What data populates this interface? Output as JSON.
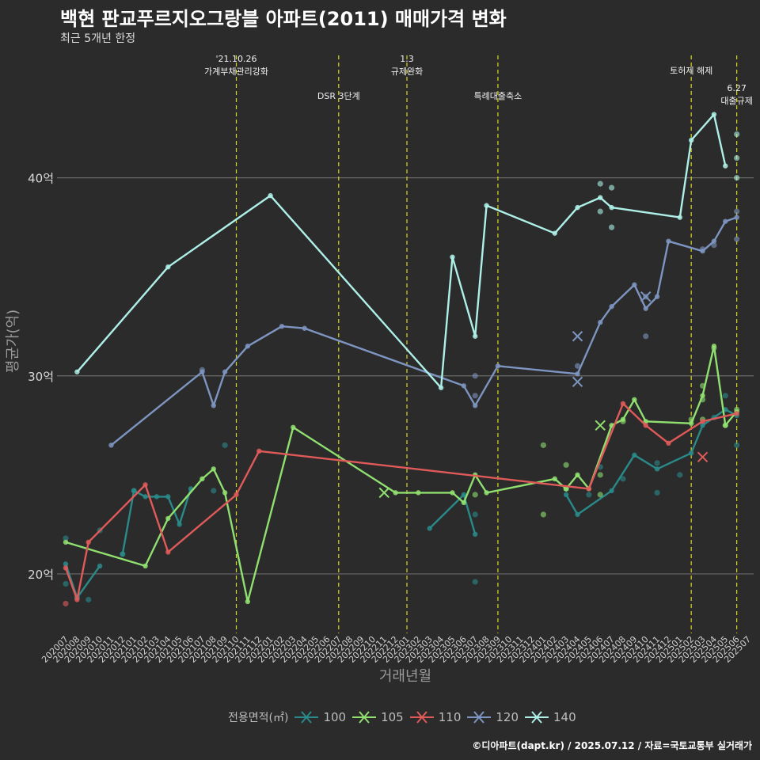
{
  "title": "백현 판교푸르지오그랑블 아파트(2011) 매매가격 변화",
  "subtitle": "최근 5개년 한정",
  "caption": "©디아파트(dapt.kr) / 2025.07.12 / 자료=국토교통부 실거래가",
  "legend": {
    "title": "전용면적(㎡)",
    "items": [
      {
        "label": "100",
        "color": "#2a8a8a"
      },
      {
        "label": "105",
        "color": "#90e070"
      },
      {
        "label": "110",
        "color": "#e05a5a"
      },
      {
        "label": "120",
        "color": "#7d95c0"
      },
      {
        "label": "140",
        "color": "#aef0e8"
      }
    ]
  },
  "chart_data": {
    "type": "line",
    "xlabel": "거래년월",
    "ylabel": "평균가(억)",
    "ylim": [
      17,
      46.5
    ],
    "yticks": [
      {
        "v": 20,
        "label": "20억"
      },
      {
        "v": 30,
        "label": "30억"
      },
      {
        "v": 40,
        "label": "40억"
      }
    ],
    "grid": true,
    "legend_position": "bottom",
    "x_ticks": [
      "202007",
      "202008",
      "202009",
      "202010",
      "202011",
      "202012",
      "202101",
      "202102",
      "202103",
      "202104",
      "202105",
      "202106",
      "202107",
      "202108",
      "202109",
      "202110",
      "202111",
      "202112",
      "202201",
      "202202",
      "202203",
      "202204",
      "202205",
      "202206",
      "202207",
      "202208",
      "202209",
      "202210",
      "202211",
      "202212",
      "202301",
      "202302",
      "202303",
      "202304",
      "202305",
      "202306",
      "202307",
      "202308",
      "202309",
      "202310",
      "202311",
      "202312",
      "202401",
      "202402",
      "202403",
      "202404",
      "202405",
      "202406",
      "202407",
      "202408",
      "202409",
      "202410",
      "202411",
      "202412",
      "202501",
      "202502",
      "202503",
      "202504",
      "202505",
      "202506",
      "202507"
    ],
    "events": [
      {
        "x": 15,
        "label": "'21.10.26\n가계부채관리강화",
        "row": 0
      },
      {
        "x": 24,
        "label": "DSR 3단계",
        "row": 1
      },
      {
        "x": 30,
        "label": "1.3\n규제완화",
        "row": 0
      },
      {
        "x": 38,
        "label": "특례대출축소",
        "row": 1
      },
      {
        "x": 55,
        "label": "토허제 해제",
        "row": 0
      },
      {
        "x": 59,
        "label": "6.27\n대출규제",
        "row": 2
      }
    ],
    "event_line_color": "#d8d820",
    "series": [
      {
        "name": "100",
        "color": "#2a8a8a",
        "line": [
          [
            0,
            20.5
          ],
          [
            1,
            18.8
          ],
          [
            3,
            20.4
          ]
        ],
        "line2": [
          [
            5,
            21.0
          ],
          [
            6,
            24.2
          ],
          [
            7,
            23.9
          ],
          [
            8,
            23.9
          ],
          [
            9,
            23.9
          ],
          [
            10,
            22.5
          ],
          [
            11,
            24.3
          ]
        ],
        "line3": [
          [
            32,
            22.3
          ],
          [
            35,
            24.0
          ],
          [
            36,
            22.0
          ]
        ],
        "line4": [
          [
            44,
            24.0
          ],
          [
            45,
            23.0
          ],
          [
            48,
            24.2
          ],
          [
            50,
            26.0
          ],
          [
            52,
            25.3
          ],
          [
            55,
            26.1
          ],
          [
            56,
            27.5
          ],
          [
            58,
            28.3
          ],
          [
            59,
            28.0
          ]
        ],
        "points": [
          [
            0,
            21.8
          ],
          [
            0,
            19.5
          ],
          [
            1,
            18.8
          ],
          [
            2,
            18.7
          ],
          [
            3,
            22.2
          ],
          [
            5,
            21.0
          ],
          [
            6,
            24.2
          ],
          [
            13,
            24.2
          ],
          [
            14,
            26.5
          ],
          [
            36,
            19.6
          ],
          [
            36,
            23.0
          ],
          [
            44,
            24.3
          ],
          [
            46,
            24.0
          ],
          [
            47,
            25.4
          ],
          [
            49,
            24.8
          ],
          [
            52,
            25.6
          ],
          [
            52,
            24.1
          ],
          [
            54,
            25.0
          ],
          [
            57,
            27.9
          ],
          [
            58,
            29.0
          ],
          [
            59,
            26.5
          ]
        ]
      },
      {
        "name": "105",
        "color": "#90e070",
        "line": [
          [
            0,
            21.6
          ],
          [
            7,
            20.4
          ],
          [
            9,
            22.8
          ],
          [
            12,
            24.8
          ],
          [
            13,
            25.3
          ],
          [
            14,
            24.1
          ],
          [
            16,
            18.6
          ],
          [
            20,
            27.4
          ],
          [
            29,
            24.1
          ],
          [
            31,
            24.1
          ],
          [
            34,
            24.1
          ],
          [
            35,
            23.6
          ],
          [
            36,
            25.0
          ],
          [
            37,
            24.1
          ],
          [
            43,
            24.8
          ],
          [
            44,
            24.3
          ],
          [
            45,
            25.0
          ],
          [
            46,
            24.3
          ],
          [
            48,
            27.5
          ],
          [
            49,
            27.8
          ],
          [
            50,
            28.8
          ],
          [
            51,
            27.7
          ],
          [
            55,
            27.6
          ],
          [
            56,
            29.0
          ],
          [
            57,
            31.5
          ],
          [
            58,
            27.5
          ],
          [
            59,
            28.2
          ]
        ],
        "points": [
          [
            36,
            24.0
          ],
          [
            42,
            26.5
          ],
          [
            42,
            23.0
          ],
          [
            44,
            25.5
          ],
          [
            44,
            24.3
          ],
          [
            47,
            24.0
          ],
          [
            47,
            25.0
          ],
          [
            49,
            27.7
          ],
          [
            55,
            27.8
          ],
          [
            56,
            29.5
          ],
          [
            56,
            28.8
          ],
          [
            56,
            27.8
          ],
          [
            57,
            31.4
          ],
          [
            58,
            27.5
          ],
          [
            59,
            28.3
          ]
        ],
        "xmarks": [
          [
            28,
            24.1
          ],
          [
            47,
            27.5
          ]
        ]
      },
      {
        "name": "110",
        "color": "#e05a5a",
        "line": [
          [
            0,
            20.3
          ],
          [
            1,
            18.7
          ],
          [
            2,
            21.6
          ],
          [
            7,
            24.5
          ],
          [
            9,
            21.1
          ],
          [
            15,
            24.0
          ],
          [
            17,
            26.2
          ],
          [
            46,
            24.3
          ],
          [
            49,
            28.6
          ],
          [
            51,
            27.5
          ],
          [
            53,
            26.6
          ],
          [
            56,
            27.7
          ],
          [
            59,
            28.1
          ]
        ],
        "points": [
          [
            0,
            18.5
          ]
        ],
        "xmarks": [
          [
            56,
            25.9
          ]
        ]
      },
      {
        "name": "120",
        "color": "#7d95c0",
        "line": [
          [
            4,
            26.5
          ],
          [
            12,
            30.2
          ],
          [
            13,
            28.5
          ],
          [
            14,
            30.2
          ],
          [
            16,
            31.5
          ],
          [
            19,
            32.5
          ],
          [
            21,
            32.4
          ],
          [
            35,
            29.5
          ],
          [
            36,
            28.5
          ],
          [
            38,
            30.5
          ],
          [
            45,
            30.1
          ],
          [
            47,
            32.7
          ],
          [
            48,
            33.5
          ],
          [
            50,
            34.6
          ],
          [
            51,
            33.4
          ],
          [
            52,
            34.0
          ],
          [
            53,
            36.8
          ],
          [
            56,
            36.3
          ],
          [
            57,
            36.8
          ],
          [
            58,
            37.8
          ],
          [
            59,
            38.0
          ]
        ],
        "points": [
          [
            12,
            30.3
          ],
          [
            36,
            30.0
          ],
          [
            36,
            29.0
          ],
          [
            45,
            30.5
          ],
          [
            51,
            32.0
          ],
          [
            51,
            34.0
          ],
          [
            56,
            36.4
          ],
          [
            57,
            36.6
          ],
          [
            59,
            36.9
          ],
          [
            59,
            38.3
          ]
        ],
        "xmarks": [
          [
            45,
            32.0
          ],
          [
            45,
            29.7
          ],
          [
            51,
            34.0
          ]
        ]
      },
      {
        "name": "140",
        "color": "#aef0e8",
        "line": [
          [
            1,
            30.2
          ],
          [
            9,
            35.5
          ],
          [
            18,
            39.1
          ],
          [
            33,
            29.4
          ],
          [
            34,
            36.0
          ],
          [
            36,
            32.0
          ],
          [
            37,
            38.6
          ],
          [
            43,
            37.2
          ],
          [
            45,
            38.5
          ],
          [
            47,
            39.0
          ],
          [
            48,
            38.5
          ],
          [
            54,
            38.0
          ],
          [
            55,
            41.9
          ],
          [
            57,
            43.2
          ],
          [
            58,
            40.6
          ]
        ],
        "points": [
          [
            47,
            39.7
          ],
          [
            47,
            38.3
          ],
          [
            48,
            39.5
          ],
          [
            48,
            37.5
          ],
          [
            59,
            42.2
          ],
          [
            59,
            41.0
          ],
          [
            59,
            40.0
          ]
        ]
      }
    ]
  }
}
